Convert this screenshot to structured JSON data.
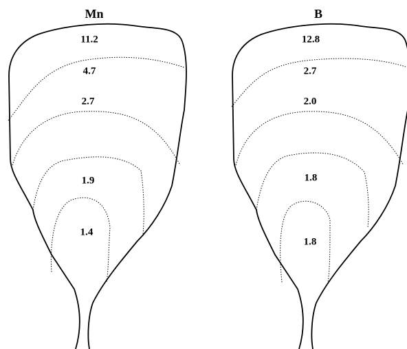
{
  "panels": [
    {
      "title": "Mn",
      "zones": [
        "11.2",
        "4.7",
        "2.7",
        "1.9",
        "1.4"
      ]
    },
    {
      "title": "B",
      "zones": [
        "12.8",
        "2.7",
        "2.0",
        "1.8",
        "1.8"
      ]
    }
  ]
}
